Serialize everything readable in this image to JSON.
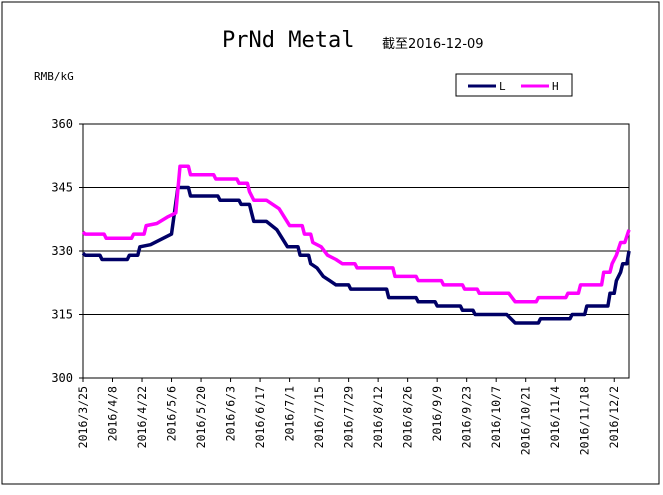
{
  "chart_data": {
    "type": "line",
    "title": "PrNd Metal",
    "subtitle": "截至2016-12-09",
    "ylabel": "RMB/kG",
    "ylim": [
      300,
      360
    ],
    "yticks": [
      "300",
      "315",
      "330",
      "345",
      "360"
    ],
    "grid": "horizontal",
    "legend_position": "top-right",
    "x_start": "2016/3/25",
    "x_end": "2016/12/9",
    "xticks": [
      "2016/3/25",
      "2016/4/8",
      "2016/4/22",
      "2016/5/6",
      "2016/5/20",
      "2016/6/3",
      "2016/6/17",
      "2016/7/1",
      "2016/7/15",
      "2016/7/29",
      "2016/8/12",
      "2016/8/26",
      "2016/9/9",
      "2016/9/23",
      "2016/10/7",
      "2016/10/21",
      "2016/11/4",
      "2016/11/18",
      "2016/12/2"
    ],
    "series": [
      {
        "name": "L",
        "color": "#000066",
        "points": [
          [
            "2016/3/25",
            329.5
          ],
          [
            "2016/3/26",
            329
          ],
          [
            "2016/4/2",
            329
          ],
          [
            "2016/4/3",
            328
          ],
          [
            "2016/4/15",
            328
          ],
          [
            "2016/4/16",
            329
          ],
          [
            "2016/4/20",
            329
          ],
          [
            "2016/4/21",
            331
          ],
          [
            "2016/4/26",
            331.5
          ],
          [
            "2016/5/2",
            333
          ],
          [
            "2016/5/6",
            334
          ],
          [
            "2016/5/9",
            345
          ],
          [
            "2016/5/14",
            345
          ],
          [
            "2016/5/15",
            343
          ],
          [
            "2016/5/28",
            343
          ],
          [
            "2016/5/29",
            342
          ],
          [
            "2016/6/7",
            342
          ],
          [
            "2016/6/8",
            341
          ],
          [
            "2016/6/12",
            341
          ],
          [
            "2016/6/13",
            339
          ],
          [
            "2016/6/14",
            337
          ],
          [
            "2016/6/20",
            337
          ],
          [
            "2016/6/25",
            335
          ],
          [
            "2016/6/30",
            331
          ],
          [
            "2016/7/5",
            331
          ],
          [
            "2016/7/6",
            329
          ],
          [
            "2016/7/10",
            329
          ],
          [
            "2016/7/11",
            327
          ],
          [
            "2016/7/14",
            326
          ],
          [
            "2016/7/17",
            324
          ],
          [
            "2016/7/20",
            323
          ],
          [
            "2016/7/23",
            322
          ],
          [
            "2016/7/29",
            322
          ],
          [
            "2016/7/30",
            321
          ],
          [
            "2016/8/16",
            321
          ],
          [
            "2016/8/17",
            319
          ],
          [
            "2016/8/30",
            319
          ],
          [
            "2016/8/31",
            318
          ],
          [
            "2016/9/8",
            318
          ],
          [
            "2016/9/9",
            317
          ],
          [
            "2016/9/20",
            317
          ],
          [
            "2016/9/21",
            316
          ],
          [
            "2016/9/26",
            316
          ],
          [
            "2016/9/27",
            315
          ],
          [
            "2016/10/12",
            315
          ],
          [
            "2016/10/16",
            313
          ],
          [
            "2016/10/27",
            313
          ],
          [
            "2016/10/28",
            314
          ],
          [
            "2016/11/11",
            314
          ],
          [
            "2016/11/12",
            315
          ],
          [
            "2016/11/18",
            315
          ],
          [
            "2016/11/19",
            317
          ],
          [
            "2016/11/29",
            317
          ],
          [
            "2016/11/30",
            320
          ],
          [
            "2016/12/2",
            320
          ],
          [
            "2016/12/3",
            323
          ],
          [
            "2016/12/5",
            325
          ],
          [
            "2016/12/6",
            327
          ],
          [
            "2016/12/8",
            327
          ],
          [
            "2016/12/9",
            330
          ]
        ]
      },
      {
        "name": "H",
        "color": "#FF00FF",
        "points": [
          [
            "2016/3/25",
            334.5
          ],
          [
            "2016/3/26",
            334
          ],
          [
            "2016/4/4",
            334
          ],
          [
            "2016/4/5",
            333
          ],
          [
            "2016/4/17",
            333
          ],
          [
            "2016/4/18",
            334
          ],
          [
            "2016/4/23",
            334
          ],
          [
            "2016/4/24",
            336
          ],
          [
            "2016/4/29",
            336.5
          ],
          [
            "2016/5/4",
            338
          ],
          [
            "2016/5/8",
            339
          ],
          [
            "2016/5/10",
            350
          ],
          [
            "2016/5/14",
            350
          ],
          [
            "2016/5/15",
            348
          ],
          [
            "2016/5/26",
            348
          ],
          [
            "2016/5/27",
            347
          ],
          [
            "2016/6/6",
            347
          ],
          [
            "2016/6/7",
            346
          ],
          [
            "2016/6/11",
            346
          ],
          [
            "2016/6/12",
            344
          ],
          [
            "2016/6/14",
            342
          ],
          [
            "2016/6/20",
            342
          ],
          [
            "2016/6/26",
            340
          ],
          [
            "2016/7/1",
            336
          ],
          [
            "2016/7/7",
            336
          ],
          [
            "2016/7/8",
            334
          ],
          [
            "2016/7/11",
            334
          ],
          [
            "2016/7/12",
            332
          ],
          [
            "2016/7/16",
            331
          ],
          [
            "2016/7/19",
            329
          ],
          [
            "2016/7/23",
            328
          ],
          [
            "2016/7/26",
            327
          ],
          [
            "2016/8/1",
            327
          ],
          [
            "2016/8/2",
            326
          ],
          [
            "2016/8/19",
            326
          ],
          [
            "2016/8/20",
            324
          ],
          [
            "2016/8/30",
            324
          ],
          [
            "2016/8/31",
            323
          ],
          [
            "2016/9/11",
            323
          ],
          [
            "2016/9/12",
            322
          ],
          [
            "2016/9/21",
            322
          ],
          [
            "2016/9/22",
            321
          ],
          [
            "2016/9/28",
            321
          ],
          [
            "2016/9/29",
            320
          ],
          [
            "2016/10/13",
            320
          ],
          [
            "2016/10/16",
            318
          ],
          [
            "2016/10/26",
            318
          ],
          [
            "2016/10/27",
            319
          ],
          [
            "2016/11/9",
            319
          ],
          [
            "2016/11/10",
            320
          ],
          [
            "2016/11/15",
            320
          ],
          [
            "2016/11/16",
            322
          ],
          [
            "2016/11/26",
            322
          ],
          [
            "2016/11/27",
            325
          ],
          [
            "2016/11/30",
            325
          ],
          [
            "2016/12/1",
            327
          ],
          [
            "2016/12/3",
            329
          ],
          [
            "2016/12/5",
            332
          ],
          [
            "2016/12/7",
            332
          ],
          [
            "2016/12/9",
            335
          ]
        ]
      }
    ]
  }
}
